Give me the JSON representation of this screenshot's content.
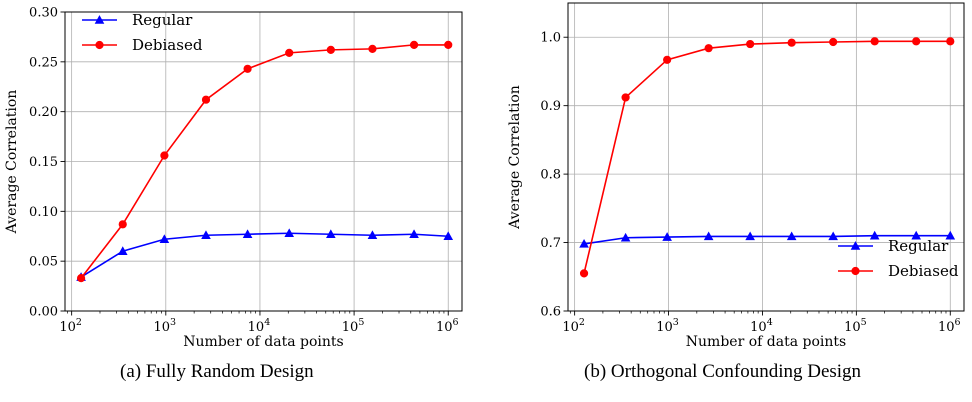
{
  "chart_data": [
    {
      "type": "line",
      "title": "",
      "caption": "(a) Fully Random Design",
      "xlabel": "Number of data points",
      "ylabel": "Average Correlation",
      "xscale": "log",
      "xlim": [
        85,
        1400000
      ],
      "ylim": [
        0.0,
        0.3
      ],
      "xticks": [
        100,
        1000,
        10000,
        100000,
        1000000
      ],
      "xtick_labels": [
        {
          "base": "10",
          "exp": "2"
        },
        {
          "base": "10",
          "exp": "3"
        },
        {
          "base": "10",
          "exp": "4"
        },
        {
          "base": "10",
          "exp": "5"
        },
        {
          "base": "10",
          "exp": "6"
        }
      ],
      "yticks": [
        0.0,
        0.05,
        0.1,
        0.15,
        0.2,
        0.25,
        0.3
      ],
      "ytick_labels": [
        "0.00",
        "0.05",
        "0.10",
        "0.15",
        "0.20",
        "0.25",
        "0.30"
      ],
      "grid": true,
      "legend_position": "top-left",
      "x": [
        126,
        349,
        966,
        2673,
        7394,
        20461,
        56620,
        156680,
        433500,
        1000000
      ],
      "series": [
        {
          "name": "Regular",
          "color": "#0000ff",
          "marker": "triangle",
          "values": [
            0.034,
            0.06,
            0.072,
            0.076,
            0.077,
            0.078,
            0.077,
            0.076,
            0.077,
            0.075
          ]
        },
        {
          "name": "Debiased",
          "color": "#ff0000",
          "marker": "circle",
          "values": [
            0.033,
            0.087,
            0.156,
            0.212,
            0.243,
            0.259,
            0.262,
            0.263,
            0.267,
            0.267
          ]
        }
      ]
    },
    {
      "type": "line",
      "title": "",
      "caption": "(b) Orthogonal Confounding Design",
      "xlabel": "Number of data points",
      "ylabel": "Average Correlation",
      "xscale": "log",
      "xlim": [
        85,
        1400000
      ],
      "ylim": [
        0.6,
        1.05
      ],
      "xticks": [
        100,
        1000,
        10000,
        100000,
        1000000
      ],
      "xtick_labels": [
        {
          "base": "10",
          "exp": "2"
        },
        {
          "base": "10",
          "exp": "3"
        },
        {
          "base": "10",
          "exp": "4"
        },
        {
          "base": "10",
          "exp": "5"
        },
        {
          "base": "10",
          "exp": "6"
        }
      ],
      "yticks": [
        0.6,
        0.7,
        0.8,
        0.9,
        1.0
      ],
      "ytick_labels": [
        "0.6",
        "0.7",
        "0.8",
        "0.9",
        "1.0"
      ],
      "grid": true,
      "legend_position": "bottom-right",
      "x": [
        126,
        349,
        966,
        2673,
        7394,
        20461,
        56620,
        156680,
        433500,
        1000000
      ],
      "series": [
        {
          "name": "Regular",
          "color": "#0000ff",
          "marker": "triangle",
          "values": [
            0.698,
            0.707,
            0.708,
            0.709,
            0.709,
            0.709,
            0.709,
            0.71,
            0.71,
            0.71
          ]
        },
        {
          "name": "Debiased",
          "color": "#ff0000",
          "marker": "circle",
          "values": [
            0.655,
            0.912,
            0.967,
            0.984,
            0.99,
            0.992,
            0.993,
            0.994,
            0.994,
            0.994
          ]
        }
      ]
    }
  ]
}
